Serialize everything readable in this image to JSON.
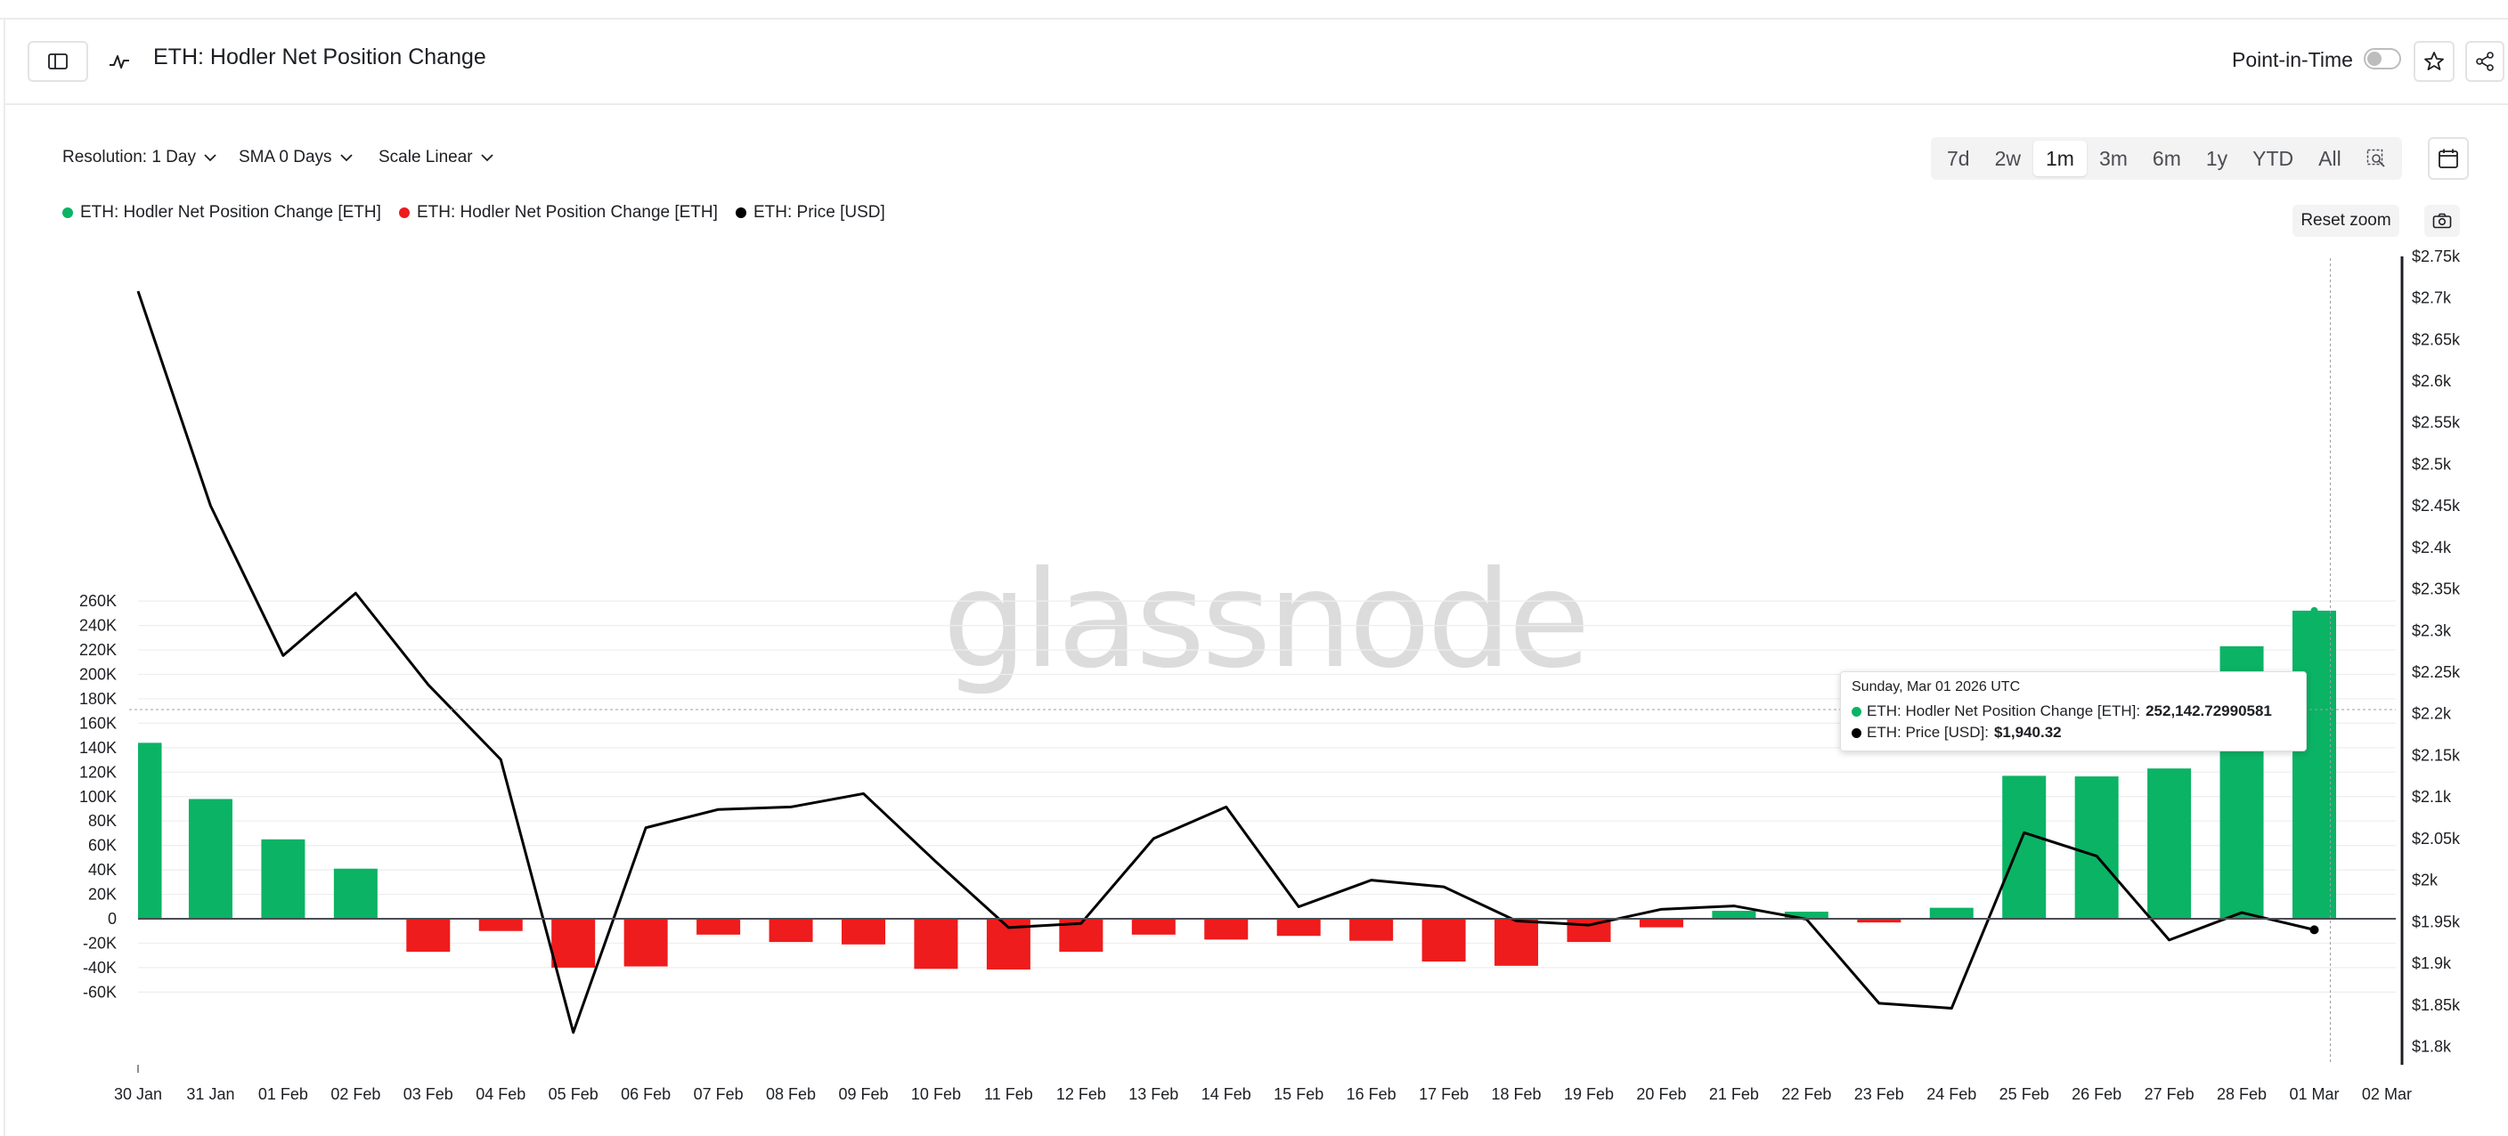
{
  "header": {
    "title": "ETH: Hodler Net Position Change",
    "point_in_time_label": "Point-in-Time"
  },
  "controls": {
    "resolution": "Resolution: 1 Day",
    "sma": "SMA 0 Days",
    "scale": "Scale Linear",
    "ranges": [
      "7d",
      "2w",
      "1m",
      "3m",
      "6m",
      "1y",
      "YTD",
      "All"
    ],
    "active_range": "1m",
    "reset_zoom": "Reset zoom"
  },
  "legend": [
    {
      "label": "ETH: Hodler Net Position Change [ETH]",
      "color": "#0bb365"
    },
    {
      "label": "ETH: Hodler Net Position Change [ETH]",
      "color": "#ee1c1c"
    },
    {
      "label": "ETH: Price [USD]",
      "color": "#000000"
    }
  ],
  "watermark": "glassnode",
  "tooltip": {
    "date": "Sunday, Mar 01 2026 UTC",
    "row1_label": "ETH: Hodler Net Position Change [ETH]: ",
    "row1_value": "252,142.72990581",
    "row2_label": "ETH: Price [USD]: ",
    "row2_value": "$1,940.32"
  },
  "colors": {
    "positive": "#0bb365",
    "negative": "#ee1c1c",
    "price": "#000000"
  },
  "chart_data": {
    "type": "bar",
    "categories": [
      "30 Jan",
      "31 Jan",
      "01 Feb",
      "02 Feb",
      "03 Feb",
      "04 Feb",
      "05 Feb",
      "06 Feb",
      "07 Feb",
      "08 Feb",
      "09 Feb",
      "10 Feb",
      "11 Feb",
      "12 Feb",
      "13 Feb",
      "14 Feb",
      "15 Feb",
      "16 Feb",
      "17 Feb",
      "18 Feb",
      "19 Feb",
      "20 Feb",
      "21 Feb",
      "22 Feb",
      "23 Feb",
      "24 Feb",
      "25 Feb",
      "26 Feb",
      "27 Feb",
      "28 Feb",
      "01 Mar",
      "02 Mar"
    ],
    "series": [
      {
        "name": "ETH: Hodler Net Position Change [ETH]",
        "axis": "left",
        "values": [
          144000,
          98000,
          65000,
          41000,
          -27000,
          -10000,
          -40000,
          -39000,
          -13000,
          -19000,
          -21000,
          -41000,
          -41500,
          -27000,
          -13000,
          -17000,
          -14000,
          -18000,
          -35000,
          -38500,
          -19000,
          -7000,
          6500,
          5800,
          -3000,
          9000,
          117000,
          116500,
          123000,
          223000,
          252142.72990581,
          null
        ]
      },
      {
        "name": "ETH: Price [USD]",
        "axis": "right",
        "type": "line",
        "values": [
          2708,
          2450,
          2270,
          2345,
          2235,
          2145,
          1817,
          2063,
          2085,
          2088,
          2104,
          2022,
          1943,
          1948,
          2050,
          2088,
          1968,
          2000,
          1992,
          1951,
          1946,
          1965,
          1969,
          1953,
          1852,
          1846,
          2057,
          2029,
          1928,
          1961,
          1940.32,
          null
        ]
      }
    ],
    "y_left": {
      "min": -60000,
      "max": 260000,
      "ticks": [
        -60000,
        -40000,
        -20000,
        0,
        20000,
        40000,
        60000,
        80000,
        100000,
        120000,
        140000,
        160000,
        180000,
        200000,
        220000,
        240000,
        260000
      ],
      "tick_labels": [
        "-60K",
        "-40K",
        "-20K",
        "0",
        "20K",
        "40K",
        "60K",
        "80K",
        "100K",
        "120K",
        "140K",
        "160K",
        "180K",
        "200K",
        "220K",
        "240K",
        "260K"
      ]
    },
    "y_right": {
      "min": 1800,
      "max": 2750,
      "ticks": [
        1800,
        1850,
        1900,
        1950,
        2000,
        2050,
        2100,
        2150,
        2200,
        2250,
        2300,
        2350,
        2400,
        2450,
        2500,
        2550,
        2600,
        2650,
        2700,
        2750
      ],
      "tick_labels": [
        "$1.8k",
        "$1.85k",
        "$1.9k",
        "$1.95k",
        "$2k",
        "$2.05k",
        "$2.1k",
        "$2.15k",
        "$2.2k",
        "$2.25k",
        "$2.3k",
        "$2.35k",
        "$2.4k",
        "$2.45k",
        "$2.5k",
        "$2.55k",
        "$2.6k",
        "$2.65k",
        "$2.7k",
        "$2.75k"
      ]
    },
    "grid": true,
    "legend_position": "top-left"
  }
}
